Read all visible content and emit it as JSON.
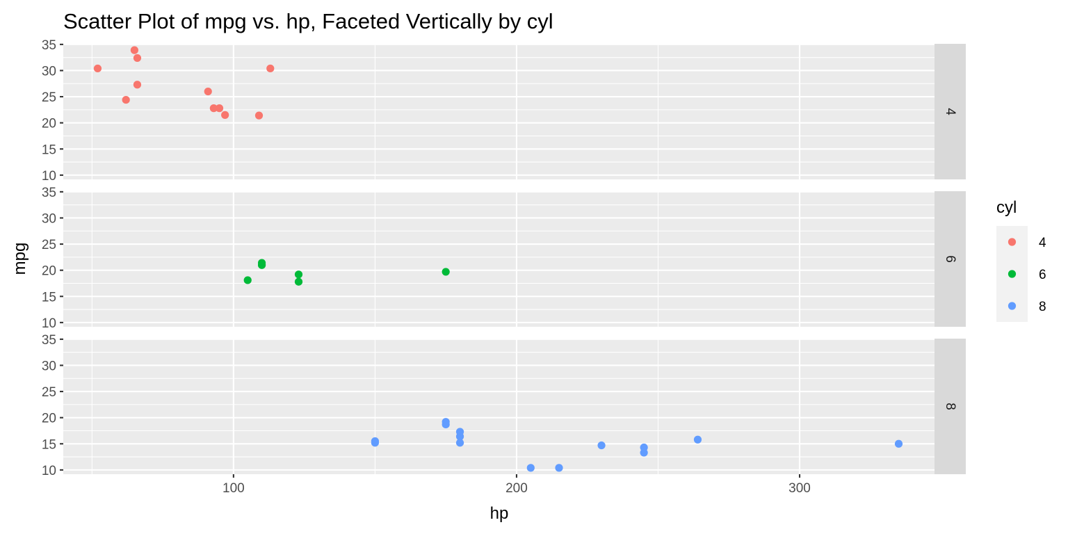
{
  "chart_data": {
    "type": "scatter",
    "title": "Scatter Plot of mpg vs. hp, Faceted Vertically by cyl",
    "xlabel": "hp",
    "ylabel": "mpg",
    "xlim": [
      39.85,
      347.65
    ],
    "ylim": [
      9.185,
      35.115
    ],
    "x_ticks": [
      100,
      200,
      300
    ],
    "y_ticks": [
      10,
      15,
      20,
      25,
      30,
      35
    ],
    "grid": true,
    "facet": "cyl",
    "legend": {
      "title": "cyl",
      "position": "right"
    },
    "series": [
      {
        "name": "4",
        "color": "#F8766D",
        "points": [
          {
            "x": 93,
            "y": 22.8
          },
          {
            "x": 62,
            "y": 24.4
          },
          {
            "x": 95,
            "y": 22.8
          },
          {
            "x": 66,
            "y": 32.4
          },
          {
            "x": 52,
            "y": 30.4
          },
          {
            "x": 65,
            "y": 33.9
          },
          {
            "x": 97,
            "y": 21.5
          },
          {
            "x": 66,
            "y": 27.3
          },
          {
            "x": 91,
            "y": 26.0
          },
          {
            "x": 113,
            "y": 30.4
          },
          {
            "x": 109,
            "y": 21.4
          }
        ]
      },
      {
        "name": "6",
        "color": "#00BA38",
        "points": [
          {
            "x": 110,
            "y": 21.0
          },
          {
            "x": 110,
            "y": 21.0
          },
          {
            "x": 110,
            "y": 21.4
          },
          {
            "x": 105,
            "y": 18.1
          },
          {
            "x": 123,
            "y": 19.2
          },
          {
            "x": 123,
            "y": 17.8
          },
          {
            "x": 175,
            "y": 19.7
          }
        ]
      },
      {
        "name": "8",
        "color": "#619CFF",
        "points": [
          {
            "x": 175,
            "y": 18.7
          },
          {
            "x": 245,
            "y": 14.3
          },
          {
            "x": 180,
            "y": 16.4
          },
          {
            "x": 180,
            "y": 17.3
          },
          {
            "x": 180,
            "y": 15.2
          },
          {
            "x": 205,
            "y": 10.4
          },
          {
            "x": 215,
            "y": 10.4
          },
          {
            "x": 230,
            "y": 14.7
          },
          {
            "x": 150,
            "y": 15.5
          },
          {
            "x": 150,
            "y": 15.2
          },
          {
            "x": 245,
            "y": 13.3
          },
          {
            "x": 175,
            "y": 19.2
          },
          {
            "x": 264,
            "y": 15.8
          },
          {
            "x": 335,
            "y": 15.0
          }
        ]
      }
    ]
  }
}
